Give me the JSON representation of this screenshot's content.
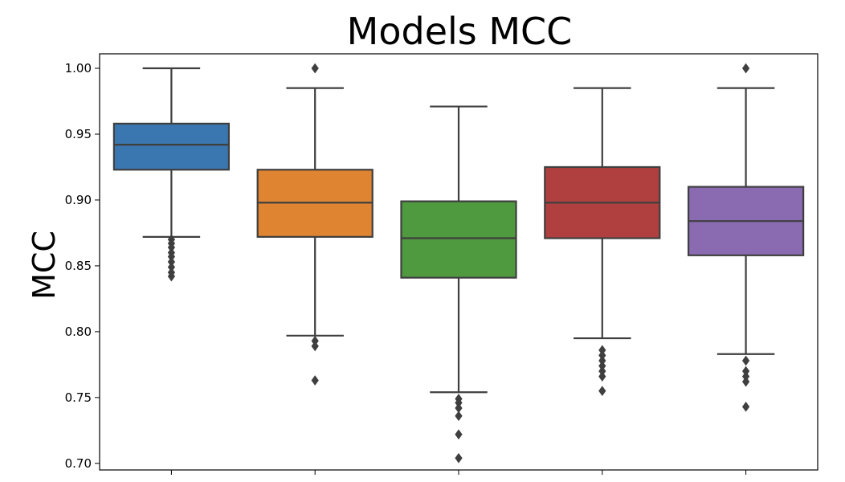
{
  "chart_data": {
    "type": "box",
    "title": "Models MCC",
    "xlabel": "",
    "ylabel": "MCC",
    "ylim": [
      0.695,
      1.011
    ],
    "yticks": [
      "0.70",
      "0.75",
      "0.80",
      "0.85",
      "0.90",
      "0.95",
      "1.00"
    ],
    "grid": false,
    "colors": [
      "#3a76af",
      "#df8431",
      "#4f9a3f",
      "#b0403f",
      "#8a6ab1"
    ],
    "edge_color": "#3f3f3f",
    "series": [
      {
        "q1": 0.923,
        "median": 0.942,
        "q3": 0.958,
        "whisker_low": 0.872,
        "whisker_high": 1.0,
        "outliers": [
          0.87,
          0.867,
          0.864,
          0.86,
          0.857,
          0.853,
          0.849,
          0.845,
          0.842
        ]
      },
      {
        "q1": 0.872,
        "median": 0.898,
        "q3": 0.923,
        "whisker_low": 0.797,
        "whisker_high": 0.985,
        "outliers": [
          1.0,
          0.793,
          0.789,
          0.763
        ]
      },
      {
        "q1": 0.841,
        "median": 0.871,
        "q3": 0.899,
        "whisker_low": 0.754,
        "whisker_high": 0.971,
        "outliers": [
          0.749,
          0.746,
          0.742,
          0.736,
          0.722,
          0.704
        ]
      },
      {
        "q1": 0.871,
        "median": 0.898,
        "q3": 0.925,
        "whisker_low": 0.795,
        "whisker_high": 0.985,
        "outliers": [
          0.786,
          0.782,
          0.778,
          0.774,
          0.77,
          0.766,
          0.755
        ]
      },
      {
        "q1": 0.858,
        "median": 0.884,
        "q3": 0.91,
        "whisker_low": 0.783,
        "whisker_high": 0.985,
        "outliers": [
          1.0,
          0.778,
          0.77,
          0.766,
          0.762,
          0.743
        ]
      }
    ]
  }
}
